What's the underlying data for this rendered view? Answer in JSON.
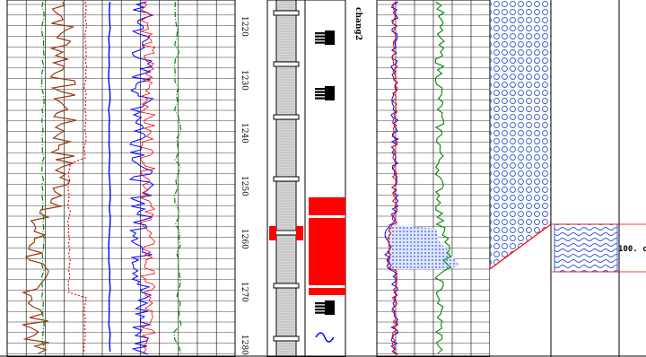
{
  "depth_ticks": [
    "1220",
    "1230",
    "1240",
    "1250",
    "1260",
    "1270",
    "1280"
  ],
  "track_annotation": "chang2",
  "interpretation_value": "100. c",
  "colors": {
    "resistivity_curve": "#9b3a10",
    "gamma_curve": "#0000ff",
    "porosity_curve": "#008800",
    "sp_curve": "#ff0000",
    "lithology_fill": "#ff0000",
    "water_zone_fill": "#3b5bd0",
    "grid": "#000000"
  },
  "icons": {
    "pattern_gravel": "circle-pattern-icon",
    "pattern_water": "wave-pattern-icon",
    "bottom_symbol": "tilde-icon"
  }
}
